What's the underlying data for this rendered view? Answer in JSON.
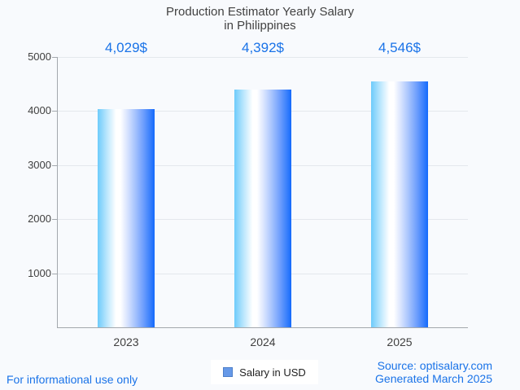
{
  "page": {
    "background_color": "#f8fafd",
    "accent_color": "#1a73e8",
    "text_color": "#424242"
  },
  "chart_data": {
    "type": "bar",
    "title_line1": "Production Estimator Yearly Salary",
    "title_line2": "in Philippines",
    "categories": [
      "2023",
      "2024",
      "2025"
    ],
    "values": [
      4029,
      4392,
      4546
    ],
    "value_labels": [
      "4,029$",
      "4,392$",
      "4,546$"
    ],
    "series": [
      {
        "name": "Salary in USD",
        "values": [
          4029,
          4392,
          4546
        ]
      }
    ],
    "xlabel": "",
    "ylabel": "",
    "ylim": [
      0,
      5000
    ],
    "yticks": [
      1000,
      2000,
      3000,
      4000,
      5000
    ],
    "grid": true,
    "legend_position": "bottom",
    "bar_gradient_stops": [
      "#6dcbfb 0%",
      "#b9e6fd 16%",
      "#ffffff 32%",
      "#ffffff 40%",
      "#d9e4fe 52%",
      "#a6c3fd 66%",
      "#6f9ffd 80%",
      "#3a80fc 92%",
      "#146afc 100%"
    ]
  },
  "legend": {
    "label": "Salary in USD",
    "swatch_fill": "#6699e8",
    "swatch_border": "#4d7fc9"
  },
  "footer": {
    "left_note": "For informational use only",
    "source_line": "Source: optisalary.com",
    "generated_line": "Generated March 2025"
  }
}
